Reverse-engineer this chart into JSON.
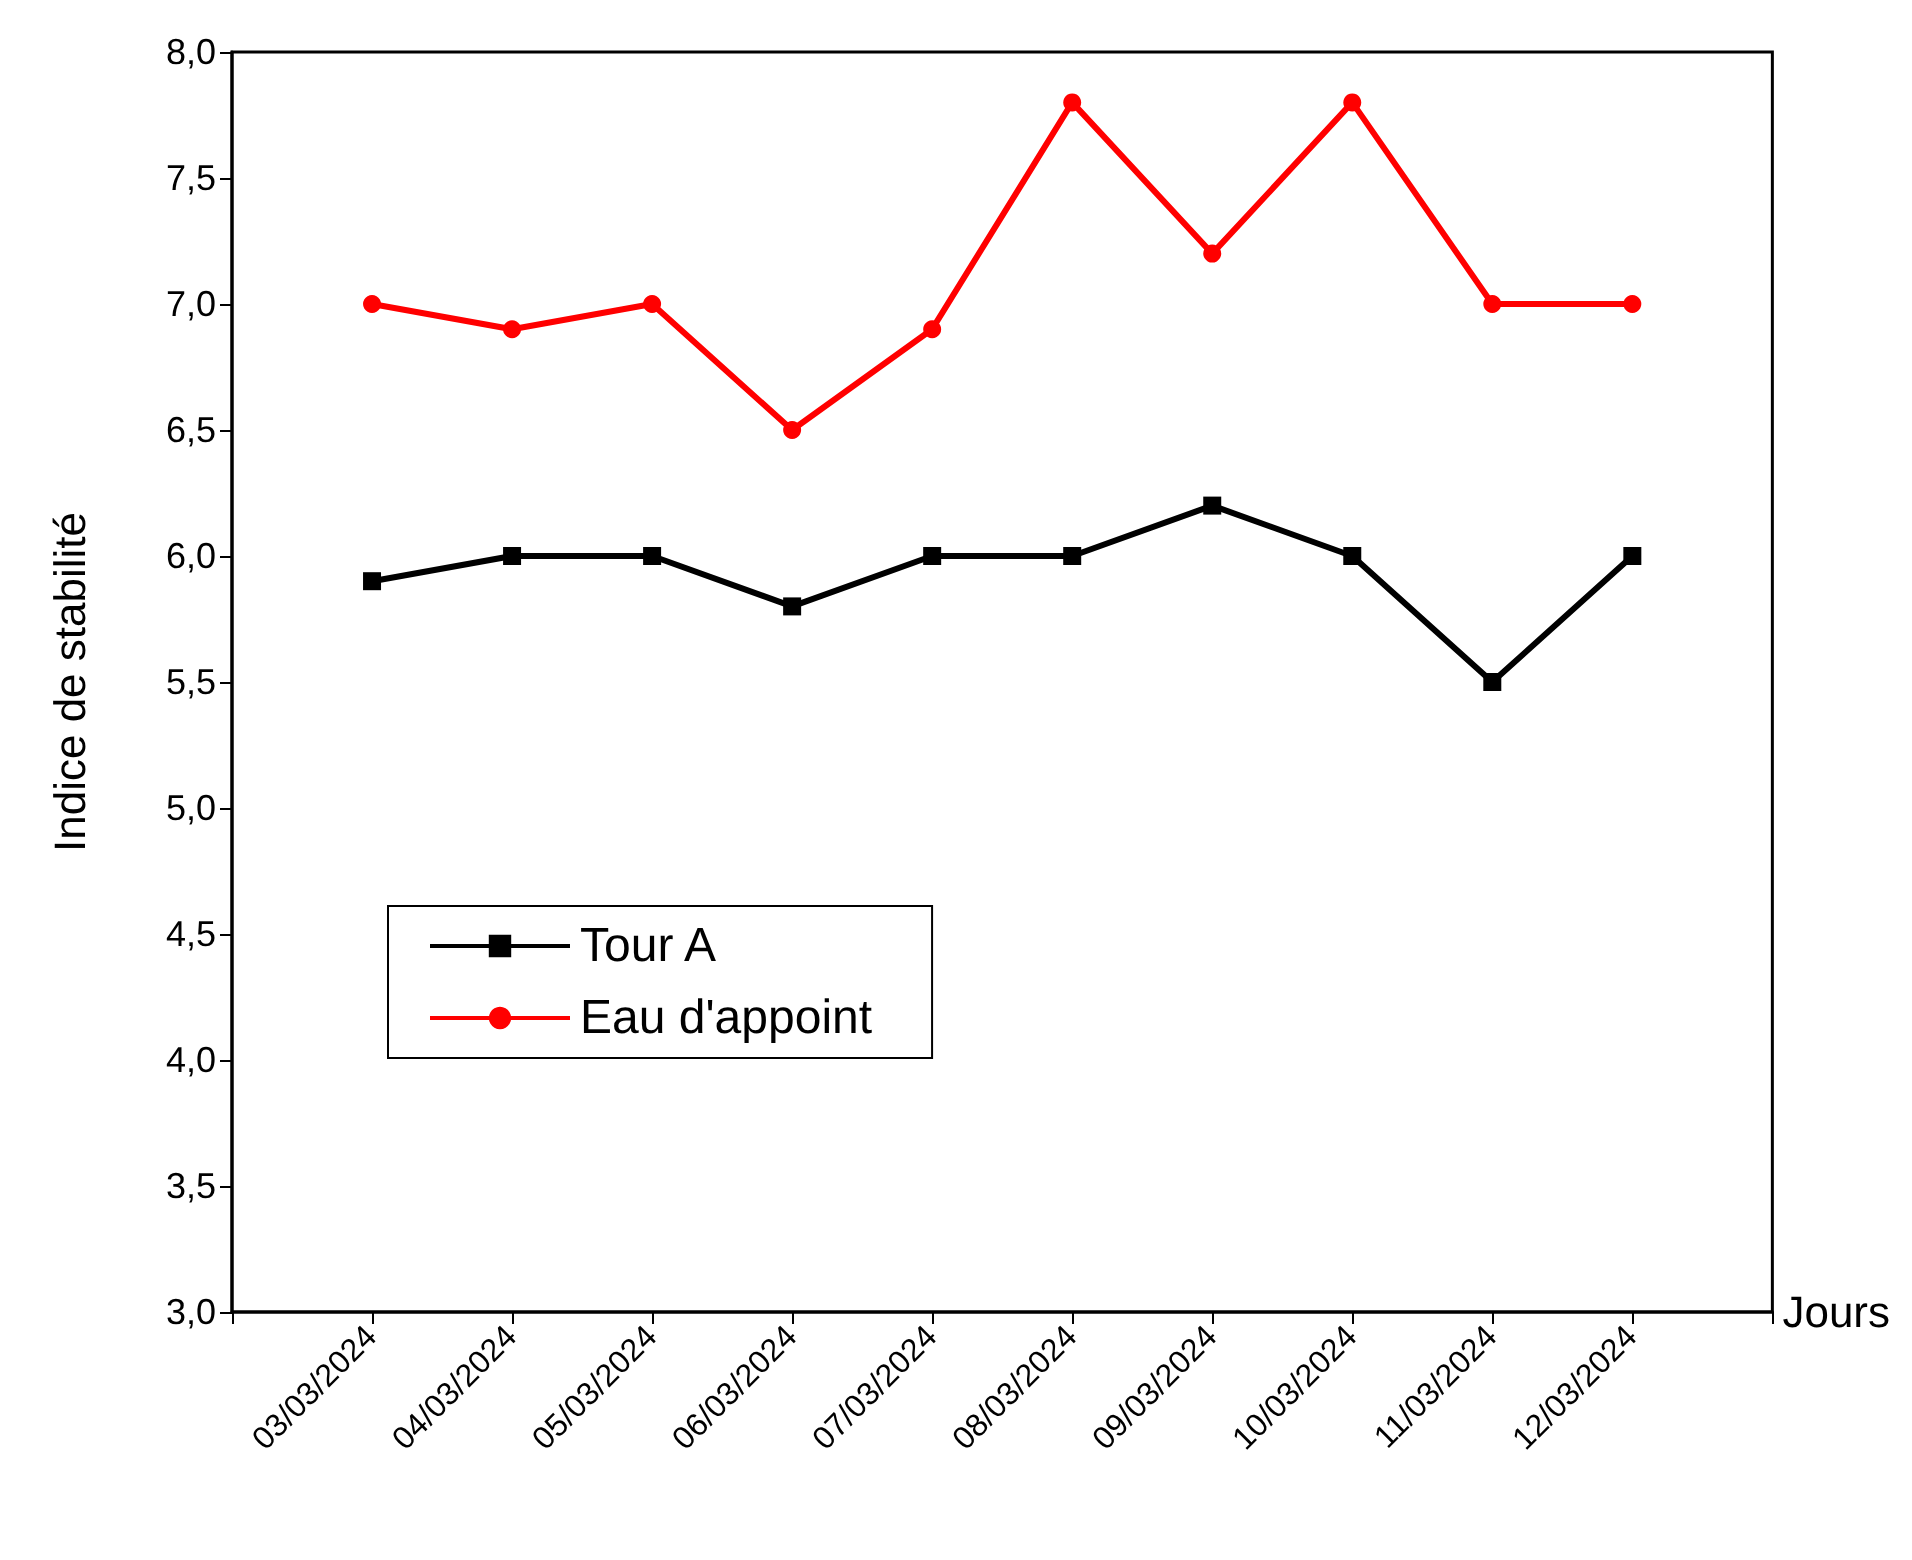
{
  "chart_data": {
    "type": "line",
    "ylabel": "Indice de stabilité",
    "xlabel": "Jours",
    "categories": [
      "03/03/2024",
      "04/03/2024",
      "05/03/2024",
      "06/03/2024",
      "07/03/2024",
      "08/03/2024",
      "09/03/2024",
      "10/03/2024",
      "11/03/2024",
      "12/03/2024"
    ],
    "series": [
      {
        "name": "Tour A",
        "color": "#000000",
        "marker": "square",
        "values": [
          5.9,
          6.0,
          6.0,
          5.8,
          6.0,
          6.0,
          6.2,
          6.0,
          5.5,
          6.0
        ]
      },
      {
        "name": "Eau d'appoint",
        "color": "#ff0000",
        "marker": "circle",
        "values": [
          7.0,
          6.9,
          7.0,
          6.5,
          6.9,
          7.8,
          7.2,
          7.8,
          7.0,
          7.0
        ]
      }
    ],
    "ylim": [
      3,
      8
    ],
    "yticks": [
      {
        "value": 3,
        "label": "3,0"
      },
      {
        "value": 3.5,
        "label": "3,5"
      },
      {
        "value": 4,
        "label": "4,0"
      },
      {
        "value": 4.5,
        "label": "4,5"
      },
      {
        "value": 5,
        "label": "5,0"
      },
      {
        "value": 5.5,
        "label": "5,5"
      },
      {
        "value": 6,
        "label": "6,0"
      },
      {
        "value": 6.5,
        "label": "6,5"
      },
      {
        "value": 7,
        "label": "7,0"
      },
      {
        "value": 7.5,
        "label": "7,5"
      },
      {
        "value": 8,
        "label": "8,0"
      }
    ],
    "grid": false,
    "legend": "bottom left",
    "line_style": "solid"
  }
}
